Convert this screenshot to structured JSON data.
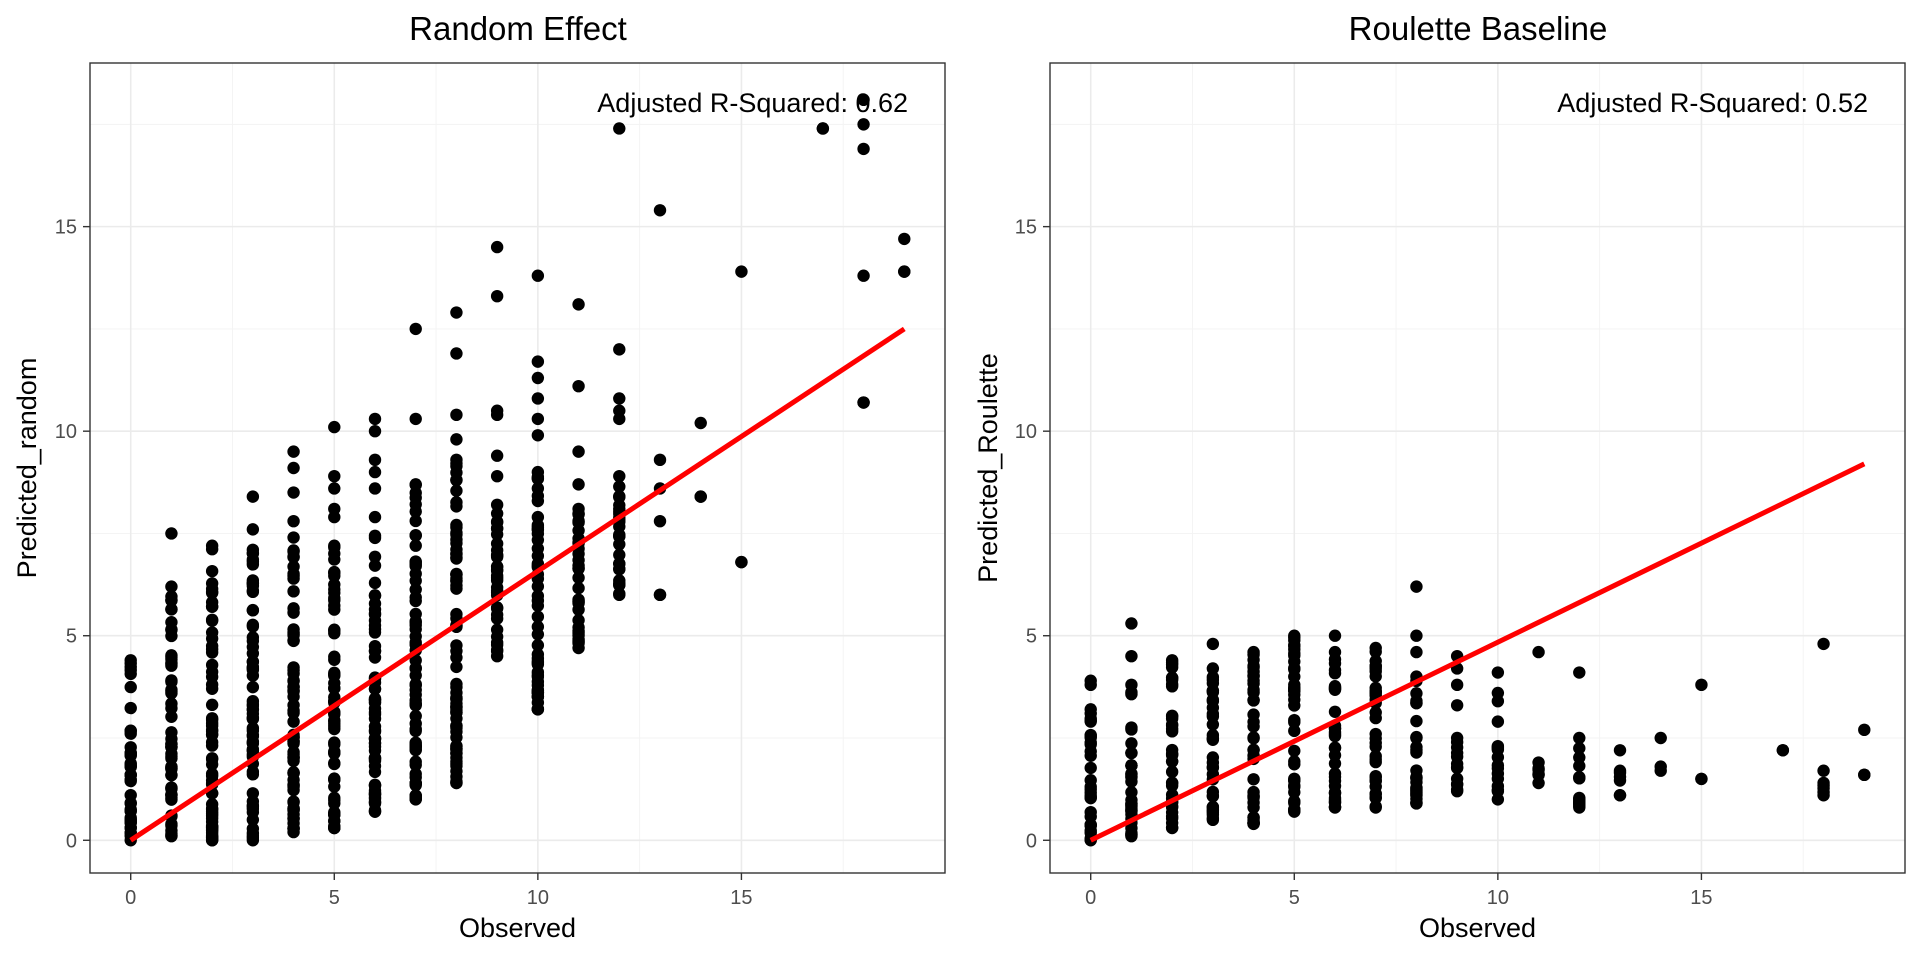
{
  "chart_data": [
    {
      "type": "scatter",
      "title": "Random Effect",
      "xlabel": "Observed",
      "ylabel": "Predicted_random",
      "xlim": [
        -1,
        20
      ],
      "ylim": [
        -0.8,
        19
      ],
      "xticks": [
        0,
        5,
        10,
        15
      ],
      "yticks": [
        0,
        5,
        10,
        15
      ],
      "annotation": "Adjusted R-Squared: 0.62",
      "fit_line": {
        "x": [
          0,
          19
        ],
        "y": [
          0,
          12.5
        ],
        "color": "#ff0000"
      },
      "point_color": "#000000",
      "point_groups": [
        {
          "x": 0,
          "y_min": 0,
          "y_max": 4.4,
          "extra": []
        },
        {
          "x": 1,
          "y_min": 0.1,
          "y_max": 6.2,
          "extra": [
            7.5
          ]
        },
        {
          "x": 2,
          "y_min": 0,
          "y_max": 7.2,
          "extra": []
        },
        {
          "x": 3,
          "y_min": 0,
          "y_max": 7.1,
          "extra": [
            7.6,
            8.4
          ]
        },
        {
          "x": 4,
          "y_min": 0.2,
          "y_max": 7.4,
          "extra": [
            7.8,
            8.5,
            9.1,
            9.5
          ]
        },
        {
          "x": 5,
          "y_min": 0.3,
          "y_max": 7.2,
          "extra": [
            7.9,
            8.1,
            8.6,
            8.9,
            10.1
          ]
        },
        {
          "x": 6,
          "y_min": 0.7,
          "y_max": 7.9,
          "extra": [
            8.6,
            9.0,
            9.3,
            10.0,
            10.3
          ]
        },
        {
          "x": 7,
          "y_min": 1.0,
          "y_max": 8.7,
          "extra": [
            10.3,
            12.5
          ]
        },
        {
          "x": 8,
          "y_min": 1.4,
          "y_max": 9.3,
          "extra": [
            9.8,
            10.4,
            11.9,
            12.9
          ]
        },
        {
          "x": 9,
          "y_min": 4.5,
          "y_max": 8.2,
          "extra": [
            8.9,
            9.4,
            10.4,
            10.5,
            13.3,
            14.5
          ]
        },
        {
          "x": 10,
          "y_min": 3.2,
          "y_max": 9.0,
          "extra": [
            9.9,
            10.3,
            10.8,
            11.3,
            11.7,
            13.8
          ]
        },
        {
          "x": 11,
          "y_min": 4.7,
          "y_max": 8.1,
          "extra": [
            8.7,
            9.5,
            11.1,
            13.1
          ]
        },
        {
          "x": 12,
          "y_min": 6.0,
          "y_max": 8.9,
          "extra": [
            10.3,
            10.5,
            10.8,
            12.0,
            17.4
          ]
        },
        {
          "x": 13,
          "y_min": 6.0,
          "y_max": 6.0,
          "extra": [
            7.8,
            8.6,
            9.3,
            15.4
          ]
        },
        {
          "x": 14,
          "y_min": 8.4,
          "y_max": 8.4,
          "extra": [
            10.2
          ]
        },
        {
          "x": 15,
          "y_min": 6.8,
          "y_max": 6.8,
          "extra": [
            13.9
          ]
        },
        {
          "x": 17,
          "y_min": 17.4,
          "y_max": 17.4,
          "extra": []
        },
        {
          "x": 18,
          "y_min": 10.7,
          "y_max": 10.7,
          "extra": [
            13.8,
            16.9,
            17.5,
            18.1
          ]
        },
        {
          "x": 19,
          "y_min": 13.9,
          "y_max": 13.9,
          "extra": [
            14.7
          ]
        }
      ]
    },
    {
      "type": "scatter",
      "title": "Roulette Baseline",
      "xlabel": "Observed",
      "ylabel": "Predicted_Roulette",
      "xlim": [
        -1,
        20
      ],
      "ylim": [
        -0.8,
        19
      ],
      "xticks": [
        0,
        5,
        10,
        15
      ],
      "yticks": [
        0,
        5,
        10,
        15
      ],
      "annotation": "Adjusted R-Squared: 0.52",
      "fit_line": {
        "x": [
          0,
          19
        ],
        "y": [
          0,
          9.2
        ],
        "color": "#ff0000"
      },
      "point_color": "#000000",
      "point_groups": [
        {
          "x": 0,
          "y_min": 0,
          "y_max": 3.2,
          "extra": [
            3.8,
            3.9
          ]
        },
        {
          "x": 1,
          "y_min": 0.1,
          "y_max": 3.8,
          "extra": [
            4.5,
            5.3
          ]
        },
        {
          "x": 2,
          "y_min": 0.3,
          "y_max": 4.4,
          "extra": []
        },
        {
          "x": 3,
          "y_min": 0.5,
          "y_max": 4.2,
          "extra": [
            4.8
          ]
        },
        {
          "x": 4,
          "y_min": 0.4,
          "y_max": 4.6,
          "extra": []
        },
        {
          "x": 5,
          "y_min": 0.7,
          "y_max": 5.0,
          "extra": []
        },
        {
          "x": 6,
          "y_min": 0.8,
          "y_max": 4.6,
          "extra": [
            5.0
          ]
        },
        {
          "x": 7,
          "y_min": 0.8,
          "y_max": 4.7,
          "extra": []
        },
        {
          "x": 8,
          "y_min": 0.9,
          "y_max": 4.0,
          "extra": [
            4.6,
            5.0,
            6.2
          ]
        },
        {
          "x": 9,
          "y_min": 1.2,
          "y_max": 2.5,
          "extra": [
            3.3,
            3.8,
            4.2,
            4.5
          ]
        },
        {
          "x": 10,
          "y_min": 1.0,
          "y_max": 2.3,
          "extra": [
            2.9,
            3.4,
            3.6,
            4.1
          ]
        },
        {
          "x": 11,
          "y_min": 1.4,
          "y_max": 1.9,
          "extra": [
            4.6
          ]
        },
        {
          "x": 12,
          "y_min": 0.8,
          "y_max": 2.5,
          "extra": [
            4.1
          ]
        },
        {
          "x": 13,
          "y_min": 1.1,
          "y_max": 1.7,
          "extra": [
            2.2
          ]
        },
        {
          "x": 14,
          "y_min": 1.7,
          "y_max": 1.8,
          "extra": [
            2.5
          ]
        },
        {
          "x": 15,
          "y_min": 1.5,
          "y_max": 1.5,
          "extra": [
            3.8
          ]
        },
        {
          "x": 17,
          "y_min": 2.2,
          "y_max": 2.2,
          "extra": []
        },
        {
          "x": 18,
          "y_min": 1.1,
          "y_max": 1.7,
          "extra": [
            4.8
          ]
        },
        {
          "x": 19,
          "y_min": 1.6,
          "y_max": 1.6,
          "extra": [
            2.7
          ]
        }
      ]
    }
  ]
}
